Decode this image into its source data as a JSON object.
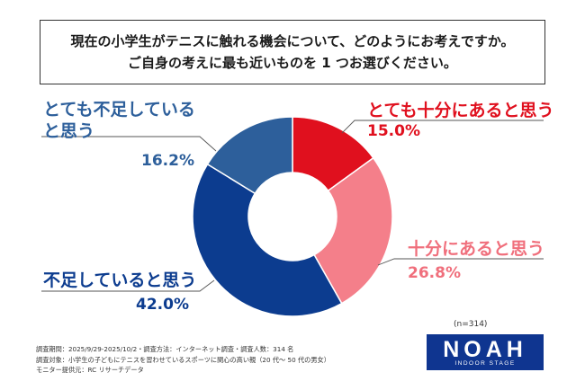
{
  "question": {
    "line1": "現在の小学生がテニスに触れる機会について、どのようにお考えですか。",
    "line2": "ご自身の考えに最も近いものを 1 つお選びください。"
  },
  "colors": {
    "juubun_totemo": "#e0101e",
    "juubun": "#f47f8a",
    "fusoku": "#0c3c8f",
    "fusoku_totemo": "#2d5f9b"
  },
  "chart_data": {
    "type": "pie",
    "categories": [
      "とても十分にあると思う",
      "十分にあると思う",
      "不足していると思う",
      "とても不足していると思う"
    ],
    "values": [
      15.0,
      26.8,
      42.0,
      16.2
    ],
    "value_labels": [
      "15.0%",
      "26.8%",
      "42.0%",
      "16.2%"
    ]
  },
  "labels": {
    "totemo_juubun_name": "とても十分にあると思う",
    "totemo_juubun_val": "15.0%",
    "juubun_name": "十分にあると思う",
    "juubun_val": "26.8%",
    "fusoku_name": "不足していると思う",
    "fusoku_val": "42.0%",
    "totemo_fusoku_name1": "とても不足している",
    "totemo_fusoku_name2": "と思う",
    "totemo_fusoku_val": "16.2%"
  },
  "sample": "(n=314)",
  "footnotes": [
    "調査期間：2025/9/29-2025/10/2・調査方法：インターネット調査・調査人数：314 名",
    "調査対象：小学生の子どもにテニスを習わせているスポーツに関心の高い親（20 代～ 50 代の男女）",
    "モニター提供元：RC リサーチデータ"
  ],
  "logo": {
    "word": "NOAH",
    "sub": "INDOOR STAGE"
  }
}
